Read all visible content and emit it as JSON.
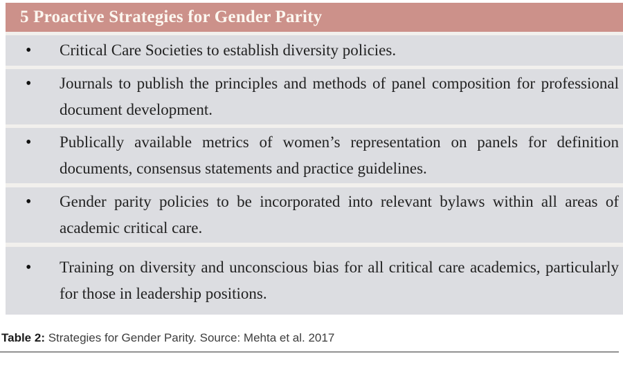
{
  "table": {
    "header": "5 Proactive Strategies for Gender Parity",
    "bullet": "•",
    "rows": [
      {
        "text": "Critical Care Societies to establish diversity policies."
      },
      {
        "text": "Journals to publish the principles and methods of panel composition for professional document development."
      },
      {
        "text": "Publically available metrics of women’s representation on panels for definition documents, consensus statements and practice guidelines."
      },
      {
        "text": "Gender parity policies to be incorporated into relevant bylaws within all areas of academic critical care."
      },
      {
        "text": "Training on diversity and unconscious bias for all critical care academics, particularly for those in leadership positions."
      }
    ]
  },
  "caption": {
    "label": "Table 2:",
    "text": " Strategies for Gender Parity. Source: Mehta et al. 2017"
  },
  "colors": {
    "header_bg": "#cc918a",
    "header_text": "#fcf7f0",
    "row_bg": "#dcdde1",
    "separator": "#f2f0ed",
    "body_text": "#222222",
    "rule": "#919191"
  }
}
